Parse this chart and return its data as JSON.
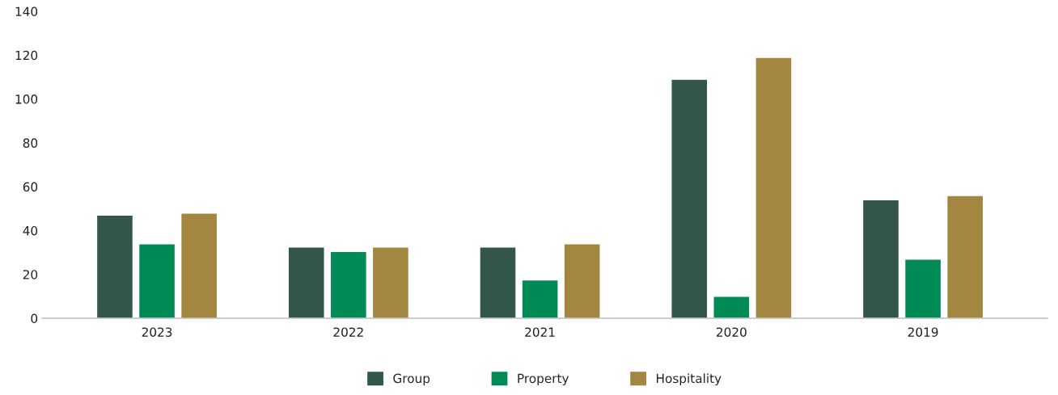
{
  "chart_data": {
    "type": "bar",
    "categories": [
      "2023",
      "2022",
      "2021",
      "2020",
      "2019"
    ],
    "series": [
      {
        "name": "Group",
        "color": "#33564a",
        "values": [
          47,
          32.5,
          32.5,
          109,
          54
        ]
      },
      {
        "name": "Property",
        "color": "#008a55",
        "values": [
          34,
          30.5,
          17.5,
          10,
          27
        ]
      },
      {
        "name": "Hospitality",
        "color": "#a3863f",
        "values": [
          48,
          32.5,
          34,
          119,
          56
        ]
      }
    ],
    "ylim": [
      0,
      140
    ],
    "yticks": [
      0,
      20,
      40,
      60,
      80,
      100,
      120,
      140
    ],
    "grid": false,
    "legend": "bottom"
  }
}
